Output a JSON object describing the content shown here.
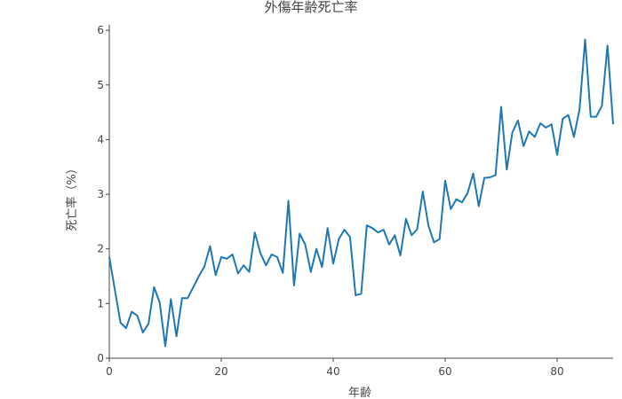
{
  "chart_data": {
    "type": "line",
    "title": "外傷年齢死亡率",
    "xlabel": "年齢",
    "ylabel": "死亡率（%）",
    "xlim": [
      0,
      90
    ],
    "ylim": [
      0,
      6.1
    ],
    "x_ticks": [
      0,
      20,
      40,
      60,
      80
    ],
    "y_ticks": [
      0,
      1,
      2,
      3,
      4,
      5,
      6
    ],
    "grid": false,
    "series": [
      {
        "color": "#1f77b4",
        "x": [
          0,
          1,
          2,
          3,
          4,
          5,
          6,
          7,
          8,
          9,
          10,
          11,
          12,
          13,
          14,
          15,
          16,
          17,
          18,
          19,
          20,
          21,
          22,
          23,
          24,
          25,
          26,
          27,
          28,
          29,
          30,
          31,
          32,
          33,
          34,
          35,
          36,
          37,
          38,
          39,
          40,
          41,
          42,
          43,
          44,
          45,
          46,
          47,
          48,
          49,
          50,
          51,
          52,
          53,
          54,
          55,
          56,
          57,
          58,
          59,
          60,
          61,
          62,
          63,
          64,
          65,
          66,
          67,
          68,
          69,
          70,
          71,
          72,
          73,
          74,
          75,
          76,
          77,
          78,
          79,
          80,
          81,
          82,
          83,
          84,
          85,
          86,
          87,
          88,
          89,
          90
        ],
        "y": [
          1.85,
          1.25,
          0.65,
          0.55,
          0.85,
          0.78,
          0.47,
          0.63,
          1.3,
          1.02,
          0.22,
          1.08,
          0.4,
          1.1,
          1.1,
          1.3,
          1.5,
          1.68,
          2.05,
          1.52,
          1.85,
          1.82,
          1.9,
          1.55,
          1.7,
          1.58,
          2.3,
          1.92,
          1.7,
          1.9,
          1.85,
          1.56,
          2.88,
          1.33,
          2.28,
          2.08,
          1.58,
          2.0,
          1.67,
          2.38,
          1.73,
          2.18,
          2.35,
          2.22,
          1.15,
          1.18,
          2.43,
          2.38,
          2.3,
          2.35,
          2.08,
          2.25,
          1.88,
          2.55,
          2.25,
          2.36,
          3.05,
          2.43,
          2.12,
          2.18,
          3.25,
          2.73,
          2.91,
          2.85,
          3.02,
          3.38,
          2.78,
          3.3,
          3.31,
          3.35,
          4.6,
          3.45,
          4.13,
          4.35,
          3.88,
          4.15,
          4.05,
          4.3,
          4.22,
          4.28,
          3.72,
          4.38,
          4.45,
          4.05,
          4.55,
          5.83,
          4.42,
          4.42,
          4.62,
          5.72,
          4.28
        ]
      }
    ]
  }
}
